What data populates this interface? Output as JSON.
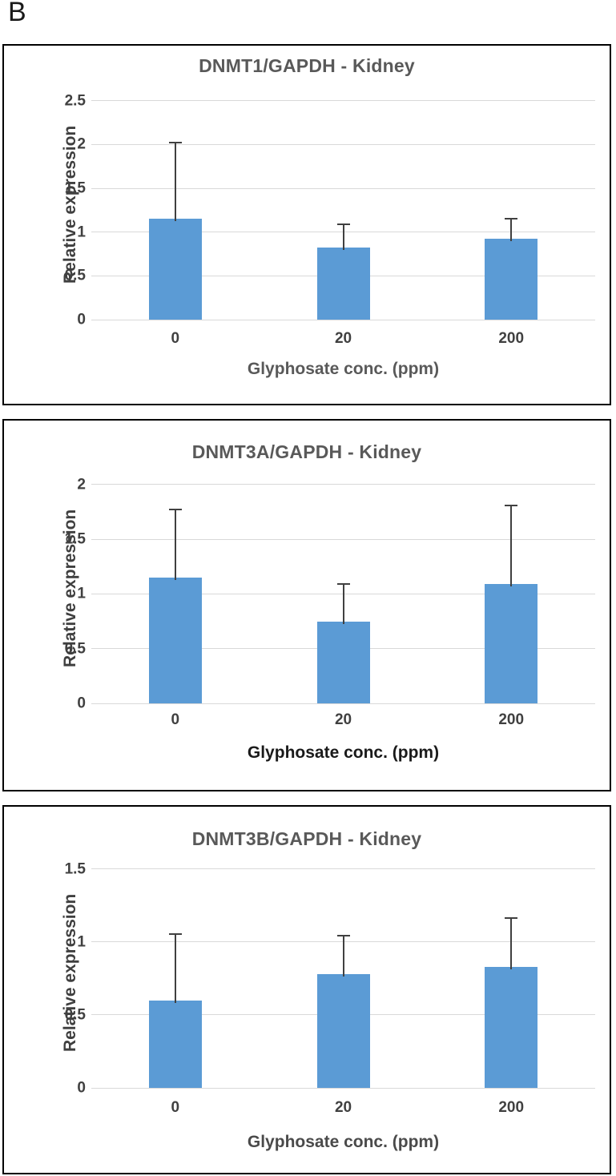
{
  "figure_label": "B",
  "chart_data": [
    {
      "type": "bar",
      "title": "DNMT1/GAPDH - Kidney",
      "ylabel": "Relative expression",
      "xlabel": "Glyphosate conc. (ppm)",
      "categories": [
        "0",
        "20",
        "200"
      ],
      "values": [
        1.15,
        0.82,
        0.92
      ],
      "error_plus": [
        0.86,
        0.26,
        0.22
      ],
      "yticks": [
        0,
        0.5,
        1,
        1.5,
        2,
        2.5
      ],
      "ylim": [
        0,
        2.625
      ],
      "grid": true,
      "legend": "none",
      "bar_color": "#5b9bd5",
      "error_color": "#404040",
      "xlabel_color": "#595959"
    },
    {
      "type": "bar",
      "title": "DNMT3A/GAPDH - Kidney",
      "ylabel": "Relative expression",
      "xlabel": "Glyphosate conc. (ppm)",
      "categories": [
        "0",
        "20",
        "200"
      ],
      "values": [
        1.15,
        0.75,
        1.09
      ],
      "error_plus": [
        0.61,
        0.33,
        0.71
      ],
      "yticks": [
        0,
        0.5,
        1,
        1.5,
        2
      ],
      "ylim": [
        0,
        2.1
      ],
      "grid": true,
      "legend": "none",
      "bar_color": "#5b9bd5",
      "error_color": "#404040",
      "xlabel_color": "#1a1a1a"
    },
    {
      "type": "bar",
      "title": "DNMT3B/GAPDH - Kidney",
      "ylabel": "Relative expression",
      "xlabel": "Glyphosate conc. (ppm)",
      "categories": [
        "0",
        "20",
        "200"
      ],
      "values": [
        0.6,
        0.78,
        0.83
      ],
      "error_plus": [
        0.45,
        0.26,
        0.33
      ],
      "yticks": [
        0,
        0.5,
        1,
        1.5
      ],
      "ylim": [
        0,
        1.575
      ],
      "grid": true,
      "legend": "none",
      "bar_color": "#5b9bd5",
      "error_color": "#404040",
      "xlabel_color": "#4a4a4a"
    }
  ]
}
